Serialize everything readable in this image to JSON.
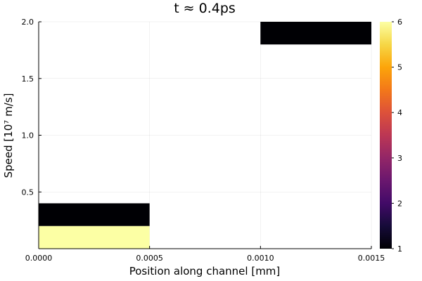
{
  "chart_data": {
    "type": "heatmap",
    "title": "t ≈ 0.4ps",
    "xlabel": "Position along channel [mm]",
    "ylabel": "Speed [10⁷ m/s]",
    "xlim": [
      0,
      0.0015
    ],
    "ylim": [
      0,
      2.0
    ],
    "x_ticks": [
      {
        "value": 0,
        "label": "0.0000"
      },
      {
        "value": 0.0005,
        "label": "0.0005"
      },
      {
        "value": 0.001,
        "label": "0.0010"
      },
      {
        "value": 0.0015,
        "label": "0.0015"
      }
    ],
    "y_ticks": [
      {
        "value": 0.5,
        "label": "0.5"
      },
      {
        "value": 1.0,
        "label": "1.0"
      },
      {
        "value": 1.5,
        "label": "1.5"
      },
      {
        "value": 2.0,
        "label": "2.0"
      }
    ],
    "colorbar": {
      "colormap": "inferno",
      "range": [
        1,
        6
      ],
      "ticks": [
        {
          "value": 1,
          "label": "1"
        },
        {
          "value": 2,
          "label": "2"
        },
        {
          "value": 3,
          "label": "3"
        },
        {
          "value": 4,
          "label": "4"
        },
        {
          "value": 5,
          "label": "5"
        },
        {
          "value": 6,
          "label": "6"
        }
      ]
    },
    "cells": [
      {
        "x0": 0,
        "x1": 0.0005,
        "y0": 0,
        "y1": 0.2,
        "value": 6
      },
      {
        "x0": 0,
        "x1": 0.0005,
        "y0": 0.2,
        "y1": 0.4,
        "value": 1
      },
      {
        "x0": 0.001,
        "x1": 0.0015,
        "y0": 1.8,
        "y1": 2.0,
        "value": 1
      }
    ],
    "grid": true
  }
}
